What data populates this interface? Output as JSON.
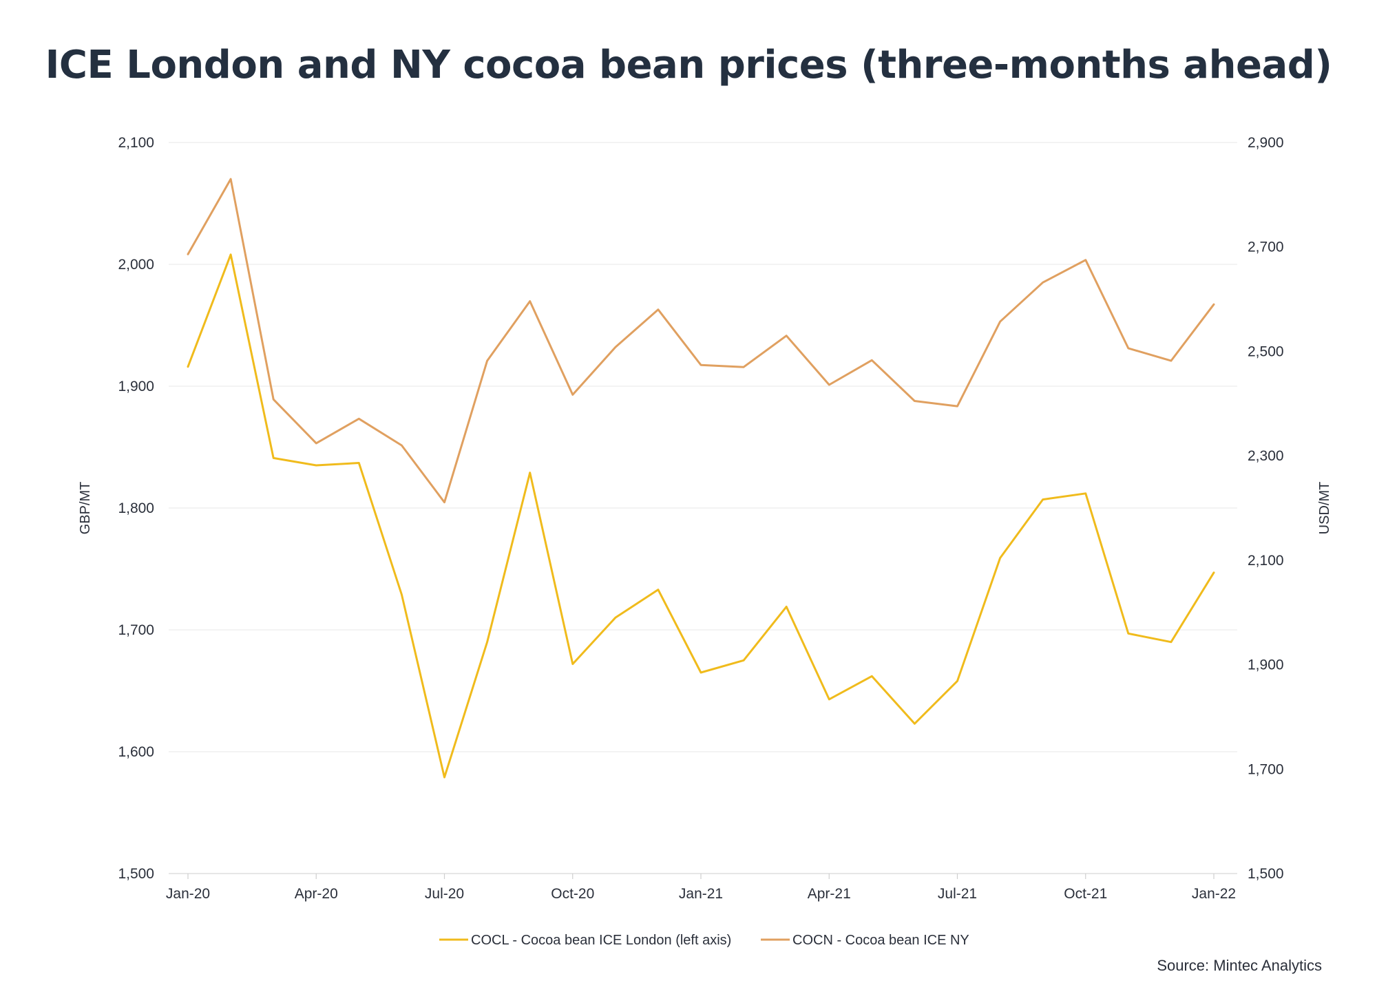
{
  "chart_data": {
    "type": "line",
    "title": "ICE London and NY cocoa bean prices (three-months ahead)",
    "ylabel_left": "GBP/MT",
    "ylabel_right": "USD/MT",
    "ylim_left": [
      1500,
      2100
    ],
    "ylim_right": [
      1500,
      2900
    ],
    "yticks_left": [
      "1,500",
      "1,600",
      "1,700",
      "1,800",
      "1,900",
      "2,000",
      "2,100"
    ],
    "yticks_left_values": [
      1500,
      1600,
      1700,
      1800,
      1900,
      2000,
      2100
    ],
    "yticks_right": [
      "1,500",
      "1,700",
      "1,900",
      "2,100",
      "2,300",
      "2,500",
      "2,700",
      "2,900"
    ],
    "yticks_right_values": [
      1500,
      1700,
      1900,
      2100,
      2300,
      2500,
      2700,
      2900
    ],
    "x": [
      "Jan-20",
      "Feb-20",
      "Mar-20",
      "Apr-20",
      "May-20",
      "Jun-20",
      "Jul-20",
      "Aug-20",
      "Sep-20",
      "Oct-20",
      "Nov-20",
      "Dec-20",
      "Jan-21",
      "Feb-21",
      "Mar-21",
      "Apr-21",
      "May-21",
      "Jun-21",
      "Jul-21",
      "Aug-21",
      "Sep-21",
      "Oct-21",
      "Nov-21",
      "Dec-21",
      "Jan-22"
    ],
    "xticks": [
      "Jan-20",
      "Apr-20",
      "Jul-20",
      "Oct-20",
      "Jan-21",
      "Apr-21",
      "Jul-21",
      "Oct-21",
      "Jan-22"
    ],
    "xtick_index": [
      0,
      3,
      6,
      9,
      12,
      15,
      18,
      21,
      24
    ],
    "series": [
      {
        "name": "COCL - Cocoa bean ICE London (left axis)",
        "axis": "left",
        "color": "#f0bb1c",
        "values": [
          1916,
          2008,
          1841,
          1835,
          1837,
          1729,
          1579,
          1690,
          1829,
          1672,
          1710,
          1733,
          1665,
          1675,
          1719,
          1643,
          1662,
          1623,
          1658,
          1759,
          1807,
          1812,
          1697,
          1690,
          1747
        ]
      },
      {
        "name": "COCN - Cocoa bean ICE  NY",
        "axis": "right",
        "color": "#e0a060",
        "values": [
          2686,
          2830,
          2408,
          2324,
          2371,
          2320,
          2211,
          2482,
          2596,
          2417,
          2508,
          2580,
          2474,
          2470,
          2530,
          2436,
          2483,
          2405,
          2395,
          2557,
          2632,
          2675,
          2506,
          2482,
          2590
        ]
      }
    ],
    "grid": true,
    "legend_position": "bottom"
  },
  "source": "Source: Mintec Analytics"
}
